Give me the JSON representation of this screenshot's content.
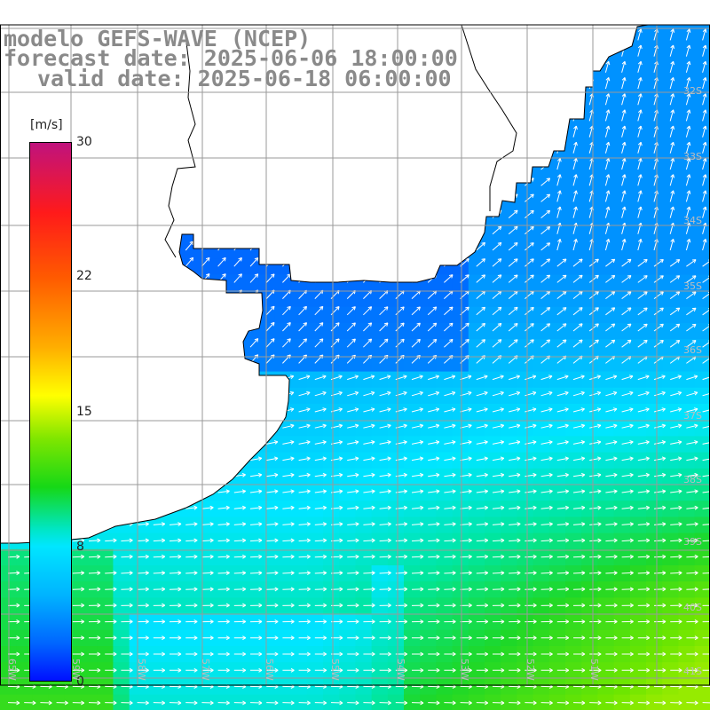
{
  "title": {
    "line1": "modelo GEFS-WAVE (NCEP)",
    "line2": "forecast date: 2025-06-06 18:00:00",
    "line3": "valid date: 2025-06-18 06:00:00"
  },
  "colorbar": {
    "unit": "[m/s]",
    "min": "0",
    "max": "30",
    "ticks": [
      "22",
      "15",
      "8"
    ]
  },
  "graticule": {
    "lat_labels": [
      "32S",
      "33S",
      "34S",
      "35S",
      "36S",
      "37S",
      "38S",
      "39S",
      "40S",
      "41S"
    ],
    "lon_labels": [
      "65W",
      "59W",
      "58W",
      "57W",
      "56W",
      "55W",
      "54W",
      "53W",
      "52W",
      "51W"
    ]
  },
  "colors": {
    "background": "#ffffff",
    "land": "#ffffff",
    "coastline": "#000000",
    "grid": "#9a9a9a",
    "vectors": "#ffffff",
    "title_text": "#8a8a8a"
  },
  "map_data": {
    "variable": "wind speed",
    "unit": "m/s",
    "scale_range": [
      0,
      30
    ],
    "lat_range": [
      "32S",
      "41S"
    ],
    "lon_range": [
      "65W",
      "51W"
    ]
  }
}
